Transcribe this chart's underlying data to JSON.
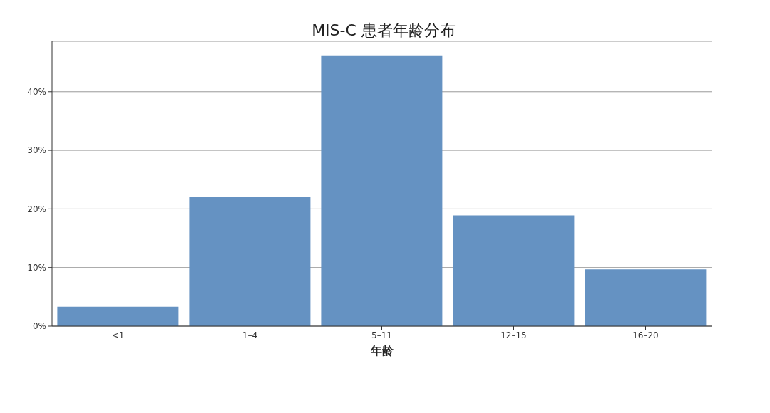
{
  "chart_data": {
    "type": "bar",
    "title": "MIS-C 患者年龄分布",
    "xlabel": "年龄",
    "categories": [
      "<1",
      "1–4",
      "5–11",
      "12–15",
      "16–20"
    ],
    "values": [
      3.3,
      22.0,
      46.2,
      18.9,
      9.7
    ],
    "color": "#6592c2",
    "ylim": [
      0,
      48.6
    ],
    "yticks": [
      {
        "value": 0,
        "label": "0%"
      },
      {
        "value": 10,
        "label": "10%"
      },
      {
        "value": 20,
        "label": "20%"
      },
      {
        "value": 30,
        "label": "30%"
      },
      {
        "value": 40,
        "label": "40%"
      }
    ],
    "grid": "y"
  }
}
